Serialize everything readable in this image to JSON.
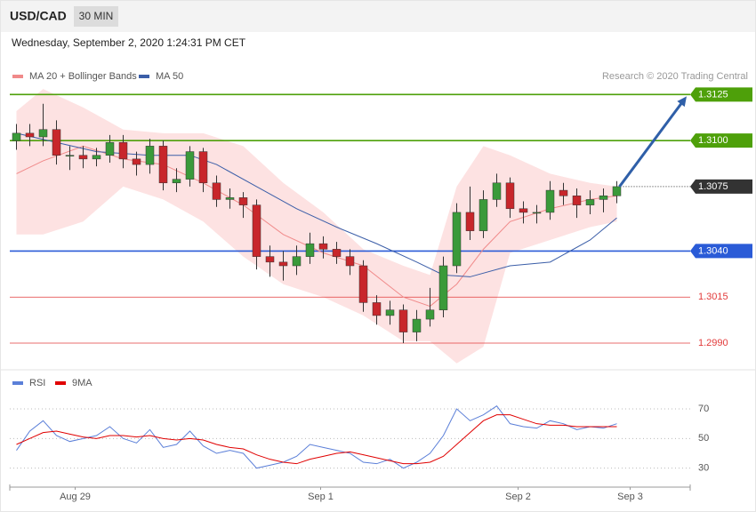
{
  "header": {
    "symbol": "USD/CAD",
    "timeframe": "30 MIN",
    "timestamp": "Wednesday, September 2, 2020 1:24:31 PM CET"
  },
  "chart_data": [
    {
      "type": "candlestick",
      "watermark": "Research © 2020 Trading Central",
      "xlim": [
        -0.5,
        50.5
      ],
      "ylim": [
        1.2976,
        1.313
      ],
      "up_color": "#3a9a3a",
      "down_color": "#c8262b",
      "open": [
        1.31,
        1.3104,
        1.3102,
        1.3106,
        1.3092,
        1.3092,
        1.309,
        1.3092,
        1.3099,
        1.309,
        1.3087,
        1.3097,
        1.3077,
        1.3079,
        1.3094,
        1.3077,
        1.3068,
        1.3069,
        1.3065,
        1.3037,
        1.3034,
        1.3032,
        1.3037,
        1.3044,
        1.3041,
        1.3037,
        1.3032,
        1.3012,
        1.3005,
        1.3008,
        1.2996,
        1.3003,
        1.3008,
        1.3032,
        1.3061,
        1.3051,
        1.3068,
        1.3077,
        1.3063,
        1.3061,
        1.3061,
        1.3073,
        1.307,
        1.3065,
        1.3068,
        1.307
      ],
      "high": [
        1.3109,
        1.3109,
        1.312,
        1.3111,
        1.3097,
        1.3097,
        1.3096,
        1.3103,
        1.3103,
        1.3094,
        1.3101,
        1.31,
        1.3085,
        1.3097,
        1.3096,
        1.3081,
        1.3074,
        1.3072,
        1.3068,
        1.3043,
        1.304,
        1.3043,
        1.305,
        1.3048,
        1.3045,
        1.3041,
        1.3035,
        1.3016,
        1.3013,
        1.3011,
        1.3008,
        1.302,
        1.3037,
        1.3066,
        1.3075,
        1.3073,
        1.3082,
        1.308,
        1.3067,
        1.3065,
        1.3078,
        1.3077,
        1.3074,
        1.3073,
        1.3074,
        1.3078
      ],
      "low": [
        1.3095,
        1.3097,
        1.3097,
        1.3087,
        1.3084,
        1.3085,
        1.3086,
        1.3088,
        1.3085,
        1.3081,
        1.3082,
        1.3073,
        1.3072,
        1.3075,
        1.3072,
        1.3064,
        1.3063,
        1.3058,
        1.303,
        1.3026,
        1.3024,
        1.3027,
        1.3033,
        1.3036,
        1.3033,
        1.3027,
        1.3007,
        1.3,
        1.3,
        1.299,
        1.2991,
        1.2999,
        1.3004,
        1.3028,
        1.3046,
        1.3047,
        1.3064,
        1.3058,
        1.3055,
        1.3055,
        1.3057,
        1.3065,
        1.3058,
        1.306,
        1.3061,
        1.3066
      ],
      "close": [
        1.3104,
        1.3102,
        1.3106,
        1.3092,
        1.3092,
        1.309,
        1.3092,
        1.3099,
        1.309,
        1.3087,
        1.3097,
        1.3077,
        1.3079,
        1.3094,
        1.3077,
        1.3068,
        1.3069,
        1.3065,
        1.3037,
        1.3034,
        1.3032,
        1.3037,
        1.3044,
        1.3041,
        1.3037,
        1.3032,
        1.3012,
        1.3005,
        1.3008,
        1.2996,
        1.3003,
        1.3008,
        1.3032,
        1.3061,
        1.3051,
        1.3068,
        1.3077,
        1.3063,
        1.3061,
        1.3061,
        1.3073,
        1.307,
        1.3065,
        1.3068,
        1.307,
        1.3075
      ],
      "bands": {
        "color": "#fde2e2",
        "x": [
          0,
          2,
          5,
          8,
          11,
          14,
          17,
          20,
          23,
          26,
          29,
          31,
          33,
          35,
          37,
          40,
          43,
          45
        ],
        "upper": [
          1.3116,
          1.3128,
          1.3118,
          1.3106,
          1.3104,
          1.3104,
          1.3097,
          1.3077,
          1.3061,
          1.3041,
          1.3032,
          1.3027,
          1.3075,
          1.3097,
          1.3092,
          1.3082,
          1.3077,
          1.3075
        ],
        "lower": [
          1.3049,
          1.3049,
          1.3056,
          1.3075,
          1.3068,
          1.3056,
          1.3037,
          1.3022,
          1.3015,
          1.3005,
          1.2991,
          1.2991,
          1.2979,
          1.2988,
          1.3039,
          1.3046,
          1.3053,
          1.3056
        ]
      },
      "series": [
        {
          "name": "MA 20 + Bollinger Bands",
          "color": "#f08a8a",
          "x": [
            0,
            2,
            5,
            8,
            11,
            14,
            17,
            20,
            23,
            26,
            29,
            31,
            33,
            35,
            37,
            40,
            43,
            45
          ],
          "values": [
            1.3082,
            1.3089,
            1.3097,
            1.309,
            1.3087,
            1.3077,
            1.3065,
            1.3049,
            1.3039,
            1.3032,
            1.3015,
            1.301,
            1.3022,
            1.3041,
            1.3056,
            1.3063,
            1.3068,
            1.307
          ]
        },
        {
          "name": "MA 50",
          "color": "#3b5ea8",
          "x": [
            0,
            3,
            6,
            10,
            13,
            15,
            18,
            21,
            24,
            27,
            30,
            32,
            34,
            37,
            40,
            43,
            45
          ],
          "values": [
            1.3104,
            1.3099,
            1.3094,
            1.3092,
            1.3092,
            1.3087,
            1.3075,
            1.3063,
            1.3053,
            1.3044,
            1.3034,
            1.3027,
            1.3026,
            1.3032,
            1.3034,
            1.3046,
            1.3058
          ]
        }
      ],
      "levels": [
        {
          "price": 1.3125,
          "label": "1.3125",
          "color": "#4ea00a",
          "kind": "tag"
        },
        {
          "price": 1.31,
          "label": "1.3100",
          "color": "#4ea00a",
          "kind": "tag"
        },
        {
          "price": 1.3075,
          "label": "1.3075",
          "color": "#333333",
          "kind": "current"
        },
        {
          "price": 1.304,
          "label": "1.3040",
          "color": "#2a5bd7",
          "kind": "tag"
        },
        {
          "price": 1.3015,
          "label": "1.3015",
          "color": "#e23b3b",
          "kind": "text"
        },
        {
          "price": 1.299,
          "label": "1.2990",
          "color": "#e23b3b",
          "kind": "text"
        }
      ]
    },
    {
      "type": "line",
      "xlim": [
        -0.5,
        50.5
      ],
      "ylim": [
        19,
        79
      ],
      "yticks": [
        30,
        50,
        70
      ],
      "grid": true,
      "xticks": [
        {
          "value": 4.4,
          "label": "Aug 29"
        },
        {
          "value": 22.8,
          "label": "Sep 1"
        },
        {
          "value": 37.6,
          "label": "Sep 2"
        },
        {
          "value": 46,
          "label": "Sep 3"
        }
      ],
      "series": [
        {
          "name": "RSI",
          "color": "#5b7fd8",
          "values": [
            42,
            55,
            62,
            52,
            48,
            50,
            52,
            58,
            50,
            47,
            56,
            44,
            46,
            55,
            45,
            40,
            42,
            40,
            30,
            32,
            34,
            38,
            46,
            44,
            42,
            40,
            34,
            33,
            36,
            30,
            34,
            40,
            52,
            70,
            62,
            66,
            72,
            60,
            58,
            57,
            62,
            60,
            56,
            58,
            57,
            60
          ]
        },
        {
          "name": "9MA",
          "color": "#e00000",
          "values": [
            46,
            50,
            54,
            55,
            53,
            51,
            50,
            52,
            52,
            51,
            52,
            50,
            49,
            50,
            49,
            46,
            44,
            43,
            39,
            36,
            34,
            33,
            36,
            38,
            40,
            41,
            39,
            37,
            35,
            33,
            33,
            34,
            38,
            46,
            54,
            62,
            66,
            66,
            63,
            60,
            59,
            59,
            58,
            58,
            58,
            58
          ]
        }
      ]
    }
  ]
}
